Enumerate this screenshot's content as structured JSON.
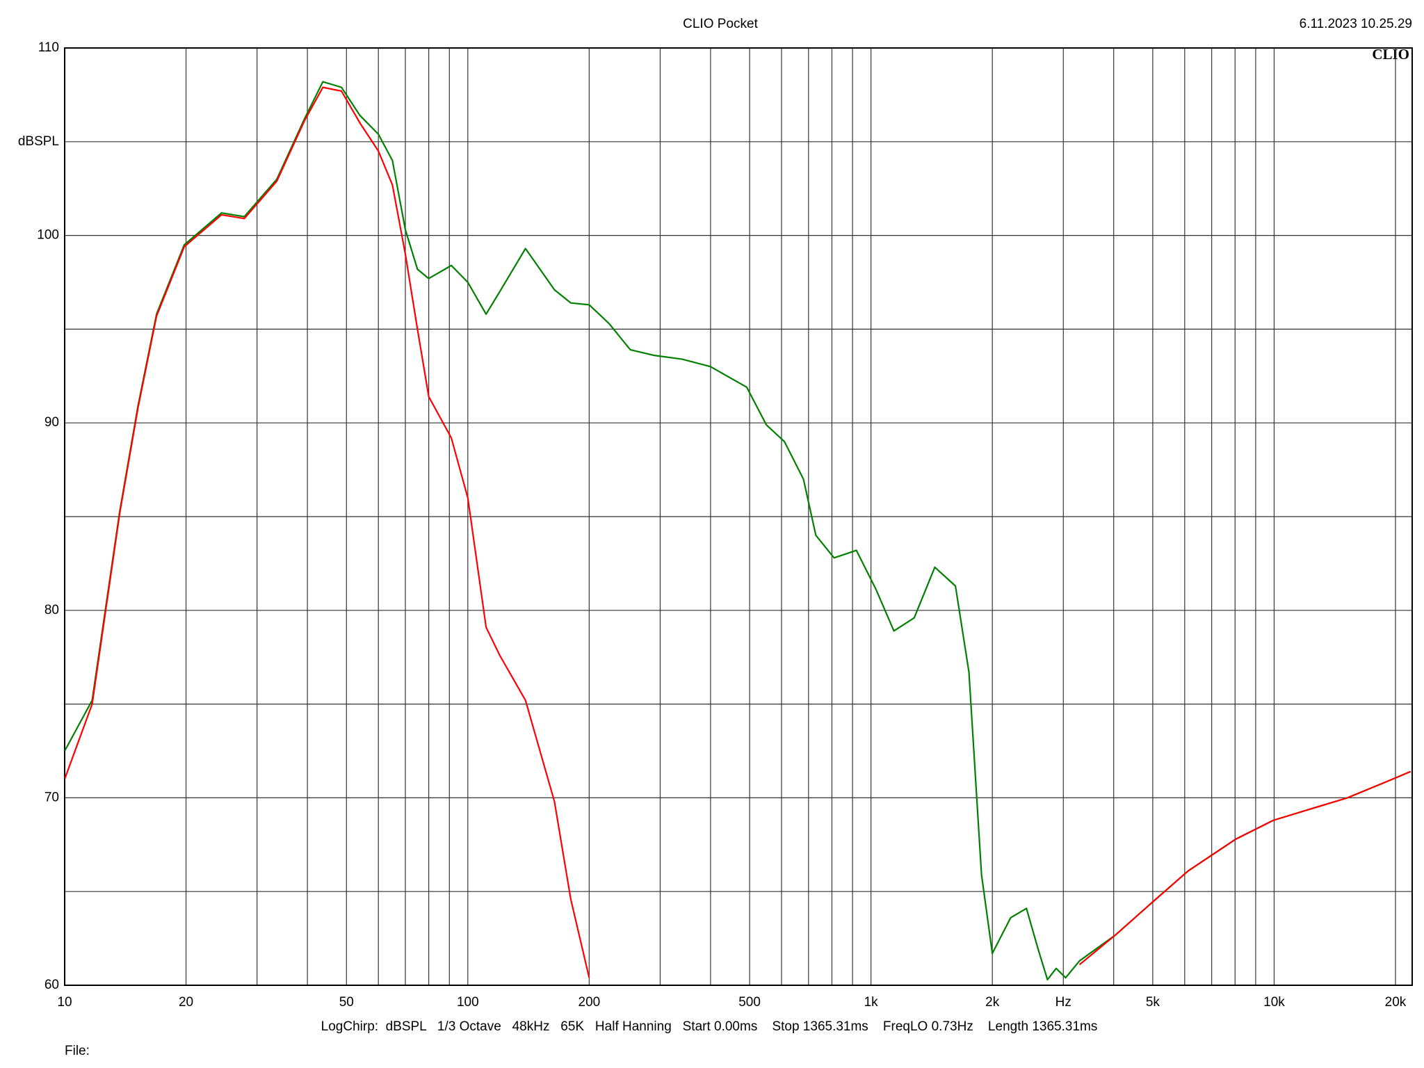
{
  "chart_data": {
    "type": "line",
    "title": "CLIO Pocket",
    "timestamp": "6.11.2023 10.25.29",
    "logo": "CLIO",
    "footer": "LogChirp:  dBSPL   1/3 Octave   48kHz   65K   Half Hanning   Start 0.00ms    Stop 1365.31ms    FreqLO 0.73Hz    Length 1365.31ms",
    "file_label": "File:",
    "x_log": true,
    "grid": true,
    "xlim": [
      10,
      22000
    ],
    "ylim": [
      60,
      110
    ],
    "xticks": [
      10,
      20,
      50,
      100,
      200,
      500,
      {
        "value": 1000,
        "label": "1k"
      },
      {
        "value": 2000,
        "label": "2k"
      },
      {
        "value": 3000,
        "label": "Hz"
      },
      {
        "value": 5000,
        "label": "5k"
      },
      {
        "value": 10000,
        "label": "10k"
      },
      {
        "value": 20000,
        "label": "20k"
      }
    ],
    "minor_xticks": [
      30,
      40,
      60,
      70,
      80,
      90,
      300,
      400,
      600,
      700,
      800,
      900,
      4000,
      6000,
      7000,
      8000,
      9000
    ],
    "yticks": [
      60,
      70,
      80,
      90,
      100,
      {
        "value": 105,
        "label": "dBSPL"
      },
      110
    ],
    "minor_yticks": [
      65,
      75,
      85,
      95
    ],
    "x": [
      10,
      11.7,
      13.7,
      15.2,
      16.9,
      19.8,
      24.5,
      27.9,
      33.6,
      39.3,
      43.7,
      48.6,
      54,
      60,
      65,
      70,
      75,
      80,
      91,
      100,
      111,
      120,
      139,
      164,
      180,
      200,
      224,
      253,
      290,
      340,
      400,
      492,
      550,
      610,
      680,
      730,
      810,
      920,
      1030,
      1140,
      1280,
      1440,
      1620,
      1750,
      1880,
      2000,
      2220,
      2430,
      2600,
      2740,
      2880,
      3040,
      3290,
      4050,
      4970,
      6120,
      8040,
      9960,
      12300,
      15200,
      18700,
      21800
    ],
    "series": [
      {
        "color": "#008000",
        "values": [
          72.5,
          75.2,
          85.3,
          90.9,
          95.8,
          99.5,
          101.2,
          101,
          103,
          106.2,
          108.2,
          107.9,
          106.4,
          105.4,
          104,
          100.3,
          98.2,
          97.7,
          98.4,
          97.5,
          95.8,
          97,
          99.3,
          97.1,
          96.4,
          96.3,
          95.3,
          93.9,
          93.6,
          93.4,
          93,
          91.9,
          89.9,
          89,
          87,
          84,
          82.8,
          83.2,
          81.1,
          78.9,
          79.6,
          82.3,
          81.3,
          76.7,
          65.9,
          61.7,
          63.6,
          64.1,
          61.9,
          60.3,
          60.9,
          60.4,
          61.3,
          62.7,
          64.4,
          66.1,
          67.8,
          68.8,
          69.4,
          70,
          70.8,
          71.4
        ]
      },
      {
        "color": "#ff0000",
        "values": [
          71,
          75,
          85.2,
          90.8,
          95.7,
          99.4,
          101.1,
          100.9,
          102.9,
          106.1,
          107.9,
          107.7,
          106,
          104.5,
          102.7,
          99,
          95,
          91.4,
          89.2,
          86,
          79.1,
          77.6,
          75.2,
          69.8,
          64.6,
          60.4,
          null,
          null,
          null,
          null,
          null,
          null,
          null,
          null,
          null,
          null,
          null,
          null,
          null,
          null,
          null,
          null,
          null,
          null,
          null,
          null,
          null,
          null,
          null,
          null,
          null,
          null,
          61.1,
          62.7,
          64.4,
          66.1,
          67.8,
          68.8,
          69.4,
          70,
          70.8,
          71.4
        ]
      }
    ]
  }
}
